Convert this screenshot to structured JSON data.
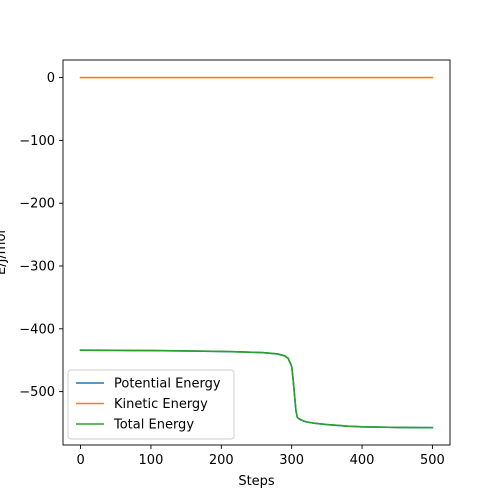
{
  "chart_data": {
    "type": "line",
    "title": "",
    "xlabel": "Steps",
    "ylabel": "E/J/mol",
    "xlim": [
      -25,
      525
    ],
    "ylim": [
      -585,
      28
    ],
    "xticks": [
      0,
      100,
      200,
      300,
      400,
      500
    ],
    "yticks": [
      0,
      -100,
      -200,
      -300,
      -400,
      -500
    ],
    "xtick_labels": [
      "0",
      "100",
      "200",
      "300",
      "400",
      "500"
    ],
    "ytick_labels": [
      "0",
      "−100",
      "−200",
      "−300",
      "−400",
      "−500"
    ],
    "grid": false,
    "legend_position": "lower-left",
    "series": [
      {
        "name": "Potential Energy",
        "color": "#1f77b4",
        "x": [
          0,
          50,
          100,
          150,
          200,
          230,
          260,
          280,
          290,
          295,
          300,
          302,
          304,
          306,
          308,
          310,
          315,
          320,
          330,
          350,
          380,
          400,
          450,
          500
        ],
        "y": [
          -434,
          -434.3,
          -434.7,
          -435.2,
          -436,
          -436.8,
          -438,
          -440,
          -443,
          -447,
          -460,
          -480,
          -505,
          -530,
          -541,
          -543,
          -546,
          -548,
          -550,
          -552.5,
          -555,
          -556,
          -557,
          -557.5
        ]
      },
      {
        "name": "Kinetic Energy",
        "color": "#ff7f0e",
        "x": [
          0,
          100,
          200,
          300,
          400,
          500
        ],
        "y": [
          0,
          0,
          0,
          0,
          0,
          0
        ]
      },
      {
        "name": "Total Energy",
        "color": "#2ca02c",
        "x": [
          0,
          50,
          100,
          150,
          200,
          230,
          260,
          280,
          290,
          295,
          300,
          302,
          304,
          306,
          308,
          310,
          315,
          320,
          330,
          350,
          380,
          400,
          450,
          500
        ],
        "y": [
          -434,
          -434.3,
          -434.7,
          -435.2,
          -436,
          -436.8,
          -438,
          -440,
          -443,
          -447,
          -460,
          -480,
          -505,
          -530,
          -541,
          -543,
          -546,
          -548,
          -550,
          -552.5,
          -555,
          -556,
          -557,
          -557.5
        ]
      }
    ]
  }
}
